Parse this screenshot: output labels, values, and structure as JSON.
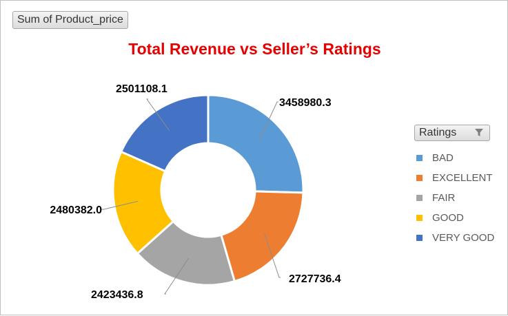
{
  "field_button": {
    "label": "Sum of Product_price"
  },
  "legend": {
    "title": "Ratings",
    "filter_icon": "filter-icon"
  },
  "colors": {
    "title": "#e60000",
    "BAD": "#5b9bd5",
    "EXCELLENT": "#ed7d31",
    "FAIR": "#a5a5a5",
    "GOOD": "#ffc000",
    "VERY GOOD": "#4472c4"
  },
  "chart_data": {
    "type": "pie",
    "subtype": "doughnut",
    "title": "Total Revenue vs Seller’s Ratings",
    "categories": [
      "BAD",
      "EXCELLENT",
      "FAIR",
      "GOOD",
      "VERY GOOD"
    ],
    "values": [
      3458980.3,
      2727736.4,
      2423436.8,
      2480382.0,
      2501108.1
    ],
    "data_labels": [
      "3458980.3",
      "2727736.4",
      "2423436.8",
      "2480382.0",
      "2501108.1"
    ],
    "legend_position": "right"
  }
}
